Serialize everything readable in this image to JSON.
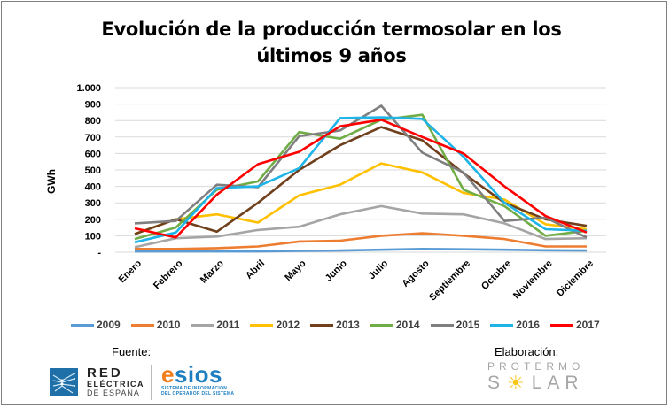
{
  "chart_data": {
    "type": "line",
    "title_line1": "Evolución de la producción termosolar en los",
    "title_line2": "últimos 9 años",
    "xlabel": "",
    "ylabel": "GWh",
    "ylim": [
      0,
      1000
    ],
    "y_ticks": [
      "-",
      "100",
      "200",
      "300",
      "400",
      "500",
      "600",
      "700",
      "800",
      "900",
      "1.000"
    ],
    "y_tick_values": [
      0,
      100,
      200,
      300,
      400,
      500,
      600,
      700,
      800,
      900,
      1000
    ],
    "grid": true,
    "legend_position": "bottom",
    "categories": [
      "Enero",
      "Febrero",
      "Marzo",
      "Abril",
      "Mayo",
      "Junio",
      "Julio",
      "Agosto",
      "Septiembre",
      "Octubre",
      "Noviembre",
      "Diciembre"
    ],
    "series": [
      {
        "name": "2009",
        "color": "#5b9bd5",
        "values": [
          5,
          5,
          5,
          5,
          8,
          10,
          15,
          20,
          18,
          15,
          12,
          10
        ]
      },
      {
        "name": "2010",
        "color": "#ed7d31",
        "values": [
          20,
          20,
          25,
          35,
          65,
          70,
          100,
          115,
          100,
          80,
          35,
          35
        ]
      },
      {
        "name": "2011",
        "color": "#a5a5a5",
        "values": [
          30,
          85,
          95,
          135,
          155,
          230,
          280,
          235,
          230,
          175,
          80,
          85
        ]
      },
      {
        "name": "2012",
        "color": "#ffc000",
        "values": [
          110,
          200,
          230,
          180,
          345,
          410,
          540,
          485,
          360,
          320,
          170,
          140
        ]
      },
      {
        "name": "2013",
        "color": "#70401d",
        "values": [
          110,
          200,
          125,
          300,
          500,
          650,
          760,
          680,
          480,
          300,
          200,
          160
        ]
      },
      {
        "name": "2014",
        "color": "#70ad47",
        "values": [
          80,
          150,
          380,
          430,
          730,
          690,
          805,
          835,
          380,
          280,
          100,
          130
        ]
      },
      {
        "name": "2015",
        "color": "#7f7f7f",
        "values": [
          175,
          190,
          410,
          395,
          705,
          740,
          890,
          605,
          485,
          190,
          210,
          90
        ]
      },
      {
        "name": "2016",
        "color": "#1fb4e8",
        "values": [
          60,
          120,
          390,
          400,
          510,
          815,
          820,
          810,
          580,
          300,
          140,
          130
        ]
      },
      {
        "name": "2017",
        "color": "#ff0000",
        "values": [
          145,
          90,
          350,
          535,
          610,
          765,
          805,
          700,
          600,
          400,
          220,
          120
        ]
      }
    ]
  },
  "footer": {
    "source_label": "Fuente:",
    "ree": {
      "line1": "RED",
      "line2": "ELÉCTRICA",
      "line3": "DE ESPAÑA"
    },
    "esios": {
      "word_e": "e",
      "word_rest": "sios",
      "sub1": "SISTEMA DE INFORMACIÓN",
      "sub2": "DEL OPERADOR DEL SISTEMA"
    },
    "elaboration_label": "Elaboración:",
    "protermo": {
      "line1": "PROTERMO",
      "line2_a": "S",
      "line2_b": "LAR"
    }
  }
}
